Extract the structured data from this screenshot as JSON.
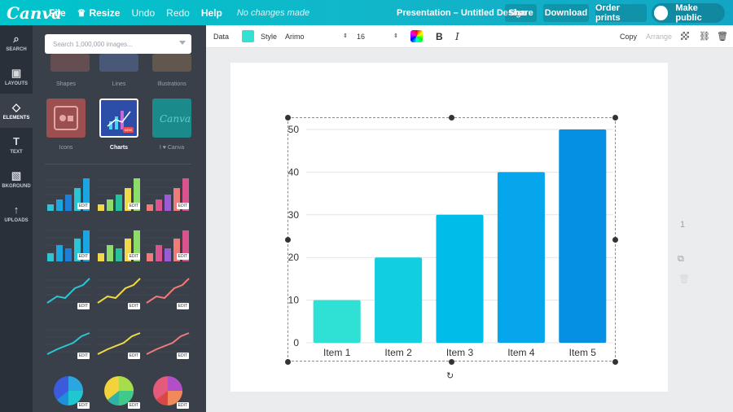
{
  "topbar": {
    "logo": "Canva",
    "menu": [
      {
        "label": "File"
      },
      {
        "label": "Resize",
        "icon": "crown-icon"
      },
      {
        "label": "Undo"
      },
      {
        "label": "Redo"
      },
      {
        "label": "Help"
      }
    ],
    "status": "No changes made",
    "doc_title": "Presentation – Untitled Design",
    "share": "Share",
    "download": "Download",
    "order_prints": "Order prints",
    "make_public": "Make public"
  },
  "nav": [
    {
      "label": "SEARCH",
      "icon": "search-icon"
    },
    {
      "label": "LAYOUTS",
      "icon": "layouts-icon"
    },
    {
      "label": "ELEMENTS",
      "icon": "elements-icon",
      "active": true
    },
    {
      "label": "TEXT",
      "icon": "text-icon"
    },
    {
      "label": "BKGROUND",
      "icon": "background-icon"
    },
    {
      "label": "UPLOADS",
      "icon": "upload-icon"
    }
  ],
  "panel": {
    "search_placeholder": "Search 1,000,000 images...",
    "categories_top": [
      "Shapes",
      "Lines",
      "Illustrations"
    ],
    "categories": [
      "Icons",
      "Charts",
      "I ♥ Canva"
    ],
    "new_badge": "NEW",
    "edit_label": "EDIT"
  },
  "toolbar": {
    "data": "Data",
    "style": "Style",
    "font": "Arimo",
    "font_size": "16",
    "bold": "B",
    "italic": "I",
    "copy": "Copy",
    "arrange": "Arrange",
    "color_swatch": "#33e0d2"
  },
  "page_number": "1",
  "chart_data": {
    "type": "bar",
    "categories": [
      "Item 1",
      "Item 2",
      "Item 3",
      "Item 4",
      "Item 5"
    ],
    "values": [
      10,
      20,
      30,
      40,
      50
    ],
    "colors": [
      "#2fe0d4",
      "#12cfe0",
      "#00bce8",
      "#05a6ec",
      "#0690e4"
    ],
    "yticks": [
      0,
      10,
      20,
      30,
      40,
      50
    ],
    "ylim": [
      0,
      50
    ],
    "grid": true,
    "title": "",
    "xlabel": "",
    "ylabel": ""
  }
}
